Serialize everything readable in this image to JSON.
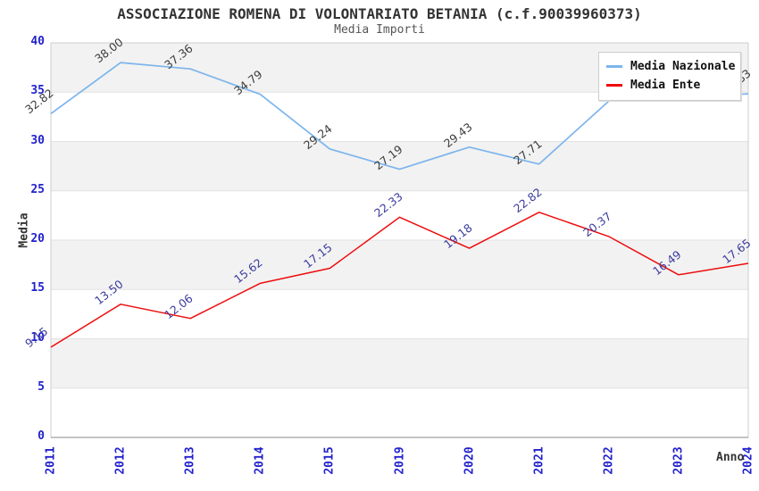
{
  "chart_data": {
    "type": "line",
    "title": "ASSOCIAZIONE ROMENA DI VOLONTARIATO BETANIA (c.f.90039960373)",
    "subtitle": "Media Importi",
    "xlabel": "Anno",
    "ylabel": "Media",
    "categories": [
      "2011",
      "2012",
      "2013",
      "2014",
      "2015",
      "2019",
      "2020",
      "2021",
      "2022",
      "2023",
      "2024"
    ],
    "yticks": [
      "0",
      "5",
      "10",
      "15",
      "20",
      "25",
      "30",
      "35",
      "40"
    ],
    "ylim": [
      0,
      40
    ],
    "grid": "horizontal gridlines with alternating gray bands every 5 units",
    "legend_position": "top-right",
    "colors": {
      "tick_label": "#2222cc",
      "band_gray": "#f2f2f2",
      "grid_line": "#e2e2e2",
      "plot_border": "#cccccc",
      "x_axis_line": "#8a8a8a",
      "title": "#333333",
      "subtitle": "#555555"
    },
    "series": [
      {
        "name": "Media Nazionale",
        "color": "#7cb5ec",
        "label_color": "#3c3c3c",
        "values": [
          32.82,
          38.0,
          37.36,
          34.79,
          29.24,
          27.19,
          29.43,
          27.71,
          34.1,
          34.5,
          34.83
        ],
        "labels": [
          "32.82",
          "38.00",
          "37.36",
          "34.79",
          "29.24",
          "27.19",
          "29.43",
          "27.71",
          "",
          "",
          "34.83"
        ]
      },
      {
        "name": "Media Ente",
        "color": "#ee0c0c",
        "label_color": "#3b3b9e",
        "values": [
          9.15,
          13.5,
          12.06,
          15.62,
          17.15,
          22.33,
          19.18,
          22.82,
          20.37,
          16.49,
          17.65
        ],
        "labels": [
          "9.15",
          "13.50",
          "12.06",
          "15.62",
          "17.15",
          "22.33",
          "19.18",
          "22.82",
          "20.37",
          "16.49",
          "17.65"
        ]
      }
    ]
  }
}
